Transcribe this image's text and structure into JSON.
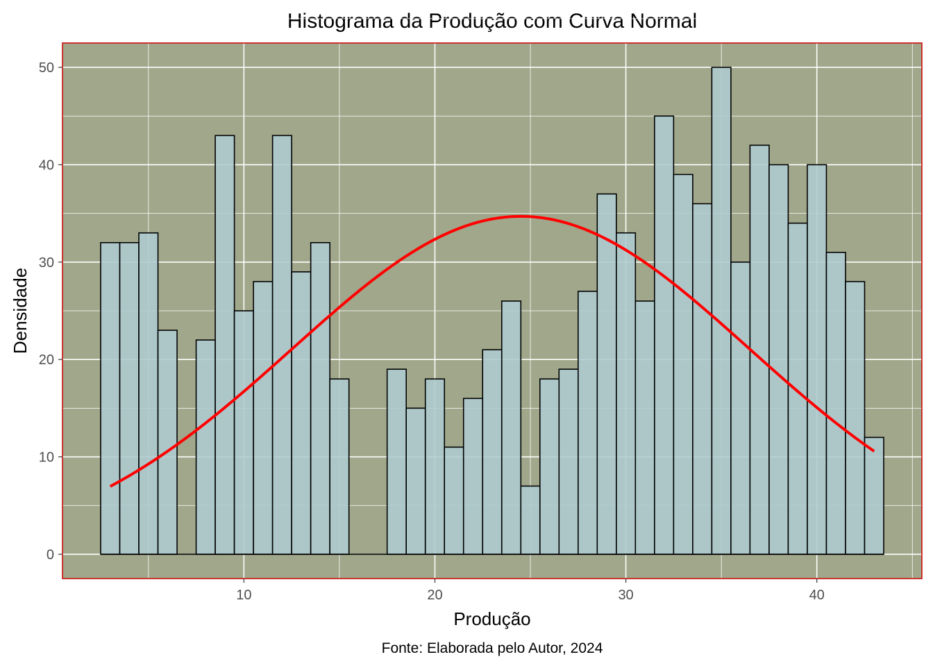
{
  "chart_data": {
    "type": "bar",
    "subtype": "histogram-with-normal-curve",
    "title": "Histograma da Produção com Curva Normal",
    "xlabel": "Produção",
    "ylabel": "Densidade",
    "caption": "Fonte: Elaborada pelo Autor, 2024",
    "xlim": [
      0.5,
      45.5
    ],
    "ylim": [
      -2.5,
      52.5
    ],
    "x_ticks": [
      10,
      20,
      30,
      40
    ],
    "y_ticks": [
      0,
      10,
      20,
      30,
      40,
      50
    ],
    "grid": true,
    "bin_width": 1,
    "bins": [
      {
        "center": 3,
        "count": 32
      },
      {
        "center": 4,
        "count": 32
      },
      {
        "center": 5,
        "count": 33
      },
      {
        "center": 6,
        "count": 23
      },
      {
        "center": 8,
        "count": 22
      },
      {
        "center": 9,
        "count": 43
      },
      {
        "center": 10,
        "count": 25
      },
      {
        "center": 11,
        "count": 28
      },
      {
        "center": 12,
        "count": 43
      },
      {
        "center": 13,
        "count": 29
      },
      {
        "center": 14,
        "count": 32
      },
      {
        "center": 15,
        "count": 18
      },
      {
        "center": 18,
        "count": 19
      },
      {
        "center": 19,
        "count": 15
      },
      {
        "center": 20,
        "count": 18
      },
      {
        "center": 21,
        "count": 11
      },
      {
        "center": 22,
        "count": 16
      },
      {
        "center": 23,
        "count": 21
      },
      {
        "center": 24,
        "count": 26
      },
      {
        "center": 25,
        "count": 7
      },
      {
        "center": 26,
        "count": 18
      },
      {
        "center": 27,
        "count": 19
      },
      {
        "center": 28,
        "count": 27
      },
      {
        "center": 29,
        "count": 37
      },
      {
        "center": 30,
        "count": 33
      },
      {
        "center": 31,
        "count": 26
      },
      {
        "center": 32,
        "count": 45
      },
      {
        "center": 33,
        "count": 39
      },
      {
        "center": 34,
        "count": 36
      },
      {
        "center": 35,
        "count": 50
      },
      {
        "center": 36,
        "count": 30
      },
      {
        "center": 37,
        "count": 42
      },
      {
        "center": 38,
        "count": 40
      },
      {
        "center": 39,
        "count": 34
      },
      {
        "center": 40,
        "count": 40
      },
      {
        "center": 41,
        "count": 31
      },
      {
        "center": 42,
        "count": 28
      },
      {
        "center": 43,
        "count": 12
      }
    ],
    "normal_curve": {
      "x_range": [
        3,
        43
      ],
      "mean": 24.5,
      "sd": 12.0,
      "peak": 34.7,
      "color": "#ff0000"
    },
    "colors": {
      "panel_background": "#a0a78a",
      "panel_border": "#cc0000",
      "bar_fill": "#aecbcf",
      "bar_stroke": "#000000",
      "grid": "#ffffff",
      "curve": "#ff0000"
    }
  }
}
